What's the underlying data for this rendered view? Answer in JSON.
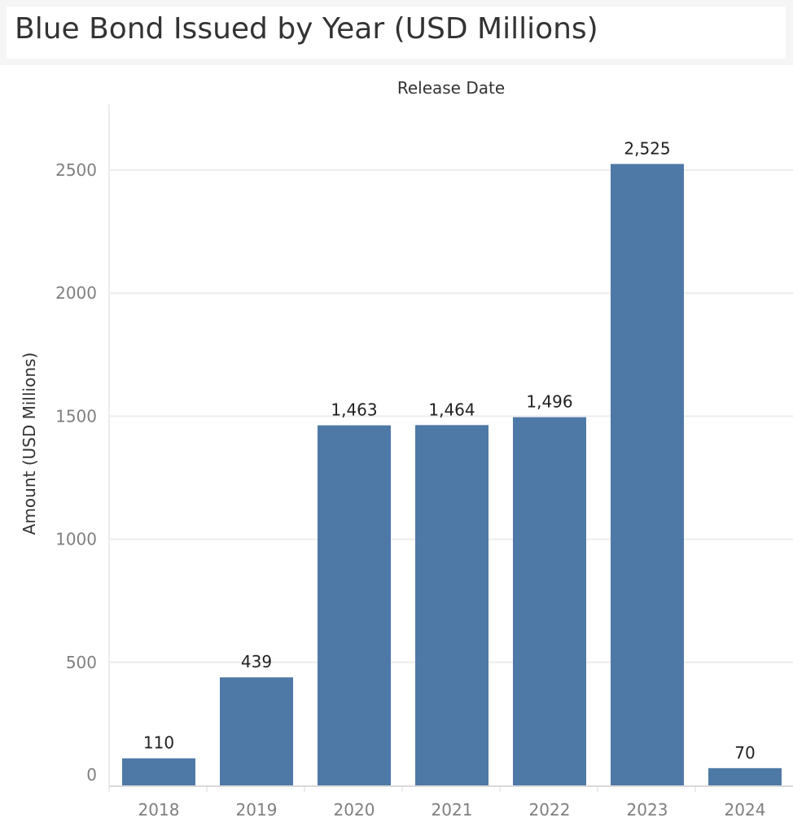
{
  "header": {
    "title": "Blue Bond Issued by Year (USD Millions)"
  },
  "chart_data": {
    "type": "bar",
    "title": "Blue Bond Issued by Year (USD Millions)",
    "column_header": "Release Date",
    "xlabel": "",
    "ylabel": "Amount (USD Millions)",
    "categories": [
      "2018",
      "2019",
      "2020",
      "2021",
      "2022",
      "2023",
      "2024"
    ],
    "values": [
      110,
      439,
      1463,
      1464,
      1496,
      2525,
      70
    ],
    "value_labels": [
      "110",
      "439",
      "1,463",
      "1,464",
      "1,496",
      "2,525",
      "70"
    ],
    "y_ticks": [
      0,
      500,
      1000,
      1500,
      2000,
      2500
    ],
    "ylim": [
      0,
      2750
    ],
    "grid": true,
    "legend": "none",
    "colors": {
      "bar": "#4e79a7",
      "gridline": "#ececec",
      "axis": "#d9d9d9",
      "tick_label": "#7f7f7f",
      "data_label": "#222222",
      "title": "#333333"
    }
  }
}
